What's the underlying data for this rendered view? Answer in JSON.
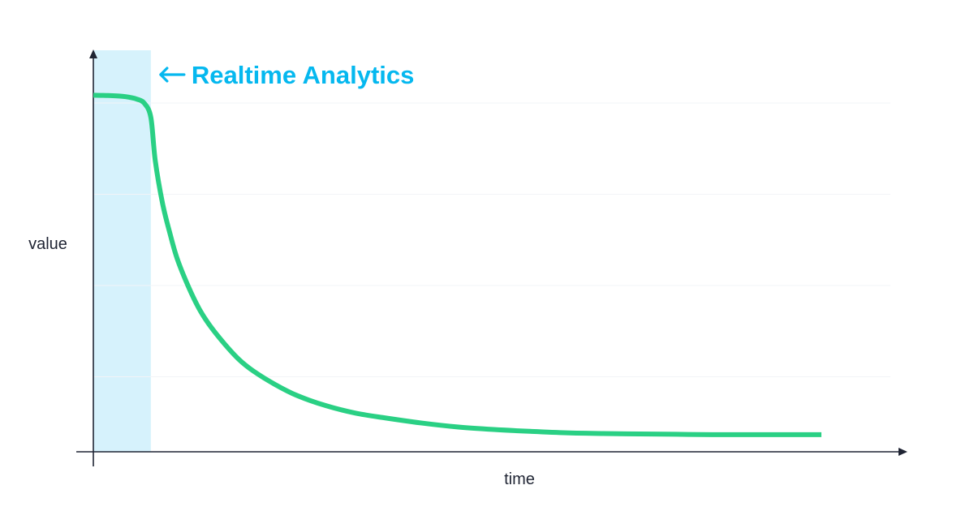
{
  "chart_data": {
    "type": "line",
    "title": "",
    "xlabel": "time",
    "ylabel": "value",
    "xlim": [
      0,
      100
    ],
    "ylim": [
      0,
      100
    ],
    "grid": true,
    "grid_y": [
      25,
      50,
      75,
      100
    ],
    "highlight": {
      "x_start": 0,
      "x_end": 7.9
    },
    "annotation": {
      "text": "Realtime Analytics",
      "x": 7.9,
      "y": 100
    },
    "series": [
      {
        "x": [
          0,
          2,
          4,
          5,
          6,
          7,
          7.9,
          8.5,
          9.5,
          10.5,
          11.5,
          13,
          14.5,
          16,
          18,
          20,
          22,
          25,
          28,
          32,
          36,
          40,
          45,
          50,
          55,
          60,
          65,
          70,
          75,
          80,
          85,
          90,
          95,
          100
        ],
        "values": [
          97.7,
          97.6,
          97.4,
          97.1,
          96.6,
          95.5,
          91.6,
          79.8,
          68.1,
          60.0,
          53.0,
          45.5,
          39.3,
          34.6,
          29.6,
          25.3,
          22.1,
          18.4,
          15.4,
          12.6,
          10.6,
          9.3,
          7.9,
          6.8,
          6.1,
          5.6,
          5.2,
          5.0,
          4.9,
          4.8,
          4.7,
          4.7,
          4.7,
          4.7
        ]
      }
    ]
  },
  "colors": {
    "line": "#2ad084",
    "highlight": "#d6f2fc",
    "annotation": "#05b8ef",
    "axis": "#1f2433",
    "grid": "#f2f4f7"
  }
}
